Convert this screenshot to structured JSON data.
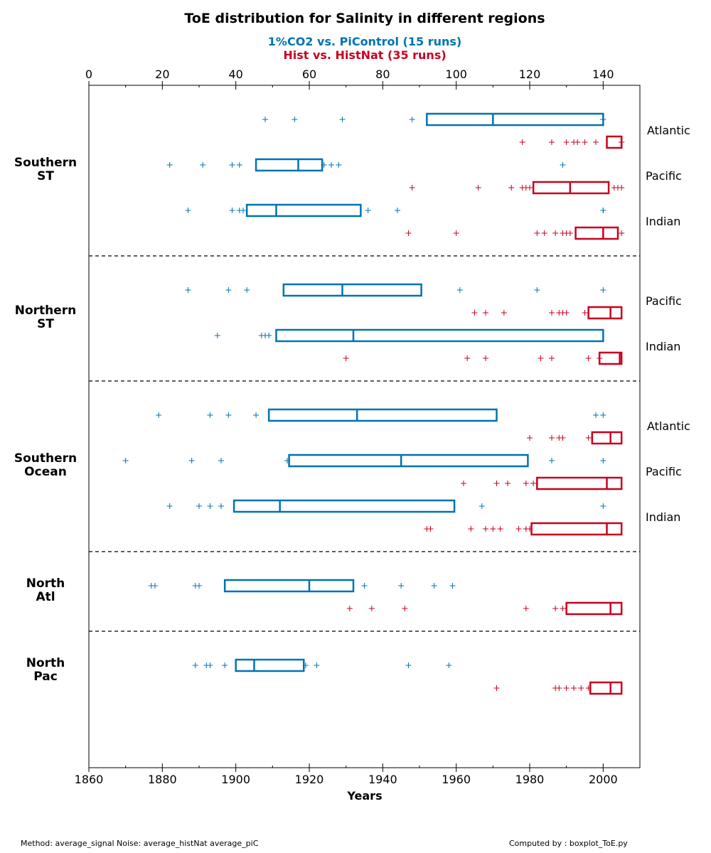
{
  "chart_data": {
    "type": "boxplot",
    "title": "ToE distribution for Salinity in different regions",
    "subtitle_1": "1%CO2 vs. PiControl (15 runs)",
    "subtitle_2": "Hist vs. HistNat (35 runs)",
    "xlabel": "Years",
    "bottom_axis": {
      "range": [
        1860,
        2010
      ],
      "ticks": [
        1860,
        1880,
        1900,
        1920,
        1940,
        1960,
        1980,
        2000
      ]
    },
    "top_axis": {
      "range": [
        0,
        150
      ],
      "ticks": [
        0,
        20,
        40,
        60,
        80,
        100,
        120,
        140
      ]
    },
    "colors": {
      "co2": "#0072b2",
      "hist": "#c8001e"
    },
    "groups": [
      {
        "label": "Southern\nST",
        "basins": [
          {
            "name": "Atlantic",
            "co2": {
              "q1": 92,
              "median": 110,
              "q3": 140,
              "points": [
                48,
                56,
                69,
                88,
                140,
                140,
                140,
                140,
                140,
                140,
                140
              ]
            },
            "hist": {
              "q1": 2001,
              "median": 2005,
              "q3": 2005,
              "points": [
                1978,
                1986,
                1990,
                1992,
                1993,
                1995,
                1998,
                2005,
                2005
              ]
            }
          },
          {
            "name": "Pacific",
            "co2": {
              "q1": 45.5,
              "median": 57,
              "q3": 63.5,
              "points": [
                22,
                31,
                39,
                41,
                64,
                66,
                68,
                129
              ]
            },
            "hist": {
              "q1": 1981,
              "median": 1991,
              "q3": 2001.5,
              "points": [
                1948,
                1966,
                1975,
                1978,
                1979,
                1980,
                2003,
                2004,
                2005
              ]
            }
          },
          {
            "name": "Indian",
            "co2": {
              "q1": 43,
              "median": 51,
              "q3": 74,
              "points": [
                27,
                39,
                41,
                42,
                76,
                84,
                140,
                140
              ]
            },
            "hist": {
              "q1": 1992.5,
              "median": 2000,
              "q3": 2004,
              "points": [
                1947,
                1960,
                1982,
                1984,
                1987,
                1989,
                1990,
                1991,
                2005
              ]
            }
          }
        ]
      },
      {
        "label": "Northern\nST",
        "basins": [
          {
            "name": "Pacific",
            "co2": {
              "q1": 53,
              "median": 69,
              "q3": 90.5,
              "points": [
                27,
                27,
                38,
                43,
                101,
                122,
                140
              ]
            },
            "hist": {
              "q1": 1996,
              "median": 2002,
              "q3": 2005,
              "points": [
                1965,
                1968,
                1973,
                1986,
                1988,
                1989,
                1990,
                1995
              ]
            }
          },
          {
            "name": "Indian",
            "co2": {
              "q1": 51,
              "median": 72,
              "q3": 140,
              "points": [
                35,
                47,
                48,
                49
              ]
            },
            "hist": {
              "q1": 1999,
              "median": 2004.5,
              "q3": 2005,
              "points": [
                1930,
                1963,
                1968,
                1983,
                1986,
                1996,
                1999
              ]
            }
          }
        ]
      },
      {
        "label": "Southern\nOcean",
        "basins": [
          {
            "name": "Atlantic",
            "co2": {
              "q1": 49,
              "median": 73,
              "q3": 111,
              "points": [
                19,
                33,
                38,
                45.5,
                138,
                140
              ]
            },
            "hist": {
              "q1": 1997,
              "median": 2002,
              "q3": 2005,
              "points": [
                1980,
                1986,
                1988,
                1989,
                1996
              ]
            }
          },
          {
            "name": "Pacific",
            "co2": {
              "q1": 54.5,
              "median": 85,
              "q3": 119.5,
              "points": [
                10,
                28,
                36,
                54,
                126,
                140
              ]
            },
            "hist": {
              "q1": 1982,
              "median": 2001,
              "q3": 2005,
              "points": [
                1962,
                1971,
                1974,
                1979,
                1981
              ]
            }
          },
          {
            "name": "Indian",
            "co2": {
              "q1": 39.5,
              "median": 52,
              "q3": 99.5,
              "points": [
                22,
                30,
                33,
                36,
                107,
                140
              ]
            },
            "hist": {
              "q1": 1980.5,
              "median": 2001,
              "q3": 2005,
              "points": [
                1952,
                1953,
                1964,
                1968,
                1970,
                1972,
                1977,
                1979,
                1980
              ]
            }
          }
        ]
      },
      {
        "label": "North\nAtl",
        "basins": [
          {
            "name": "",
            "co2": {
              "q1": 37,
              "median": 60,
              "q3": 72,
              "points": [
                17,
                18,
                29,
                30,
                75,
                85,
                94,
                99
              ]
            },
            "hist": {
              "q1": 1990,
              "median": 2002,
              "q3": 2005,
              "points": [
                1931,
                1937,
                1946,
                1979,
                1987,
                1989
              ]
            }
          }
        ]
      },
      {
        "label": "North\nPac",
        "basins": [
          {
            "name": "",
            "co2": {
              "q1": 40,
              "median": 45,
              "q3": 58.5,
              "points": [
                29,
                32,
                33,
                37,
                59,
                62,
                87,
                98
              ]
            },
            "hist": {
              "q1": 1996.5,
              "median": 2002,
              "q3": 2005,
              "points": [
                1971,
                1987,
                1988,
                1990,
                1992,
                1994,
                1996
              ]
            }
          }
        ]
      }
    ]
  },
  "footer": {
    "method": "Method: average_signal  Noise: average_histNat average_piC",
    "computed_by": "Computed by : boxplot_ToE.py"
  }
}
